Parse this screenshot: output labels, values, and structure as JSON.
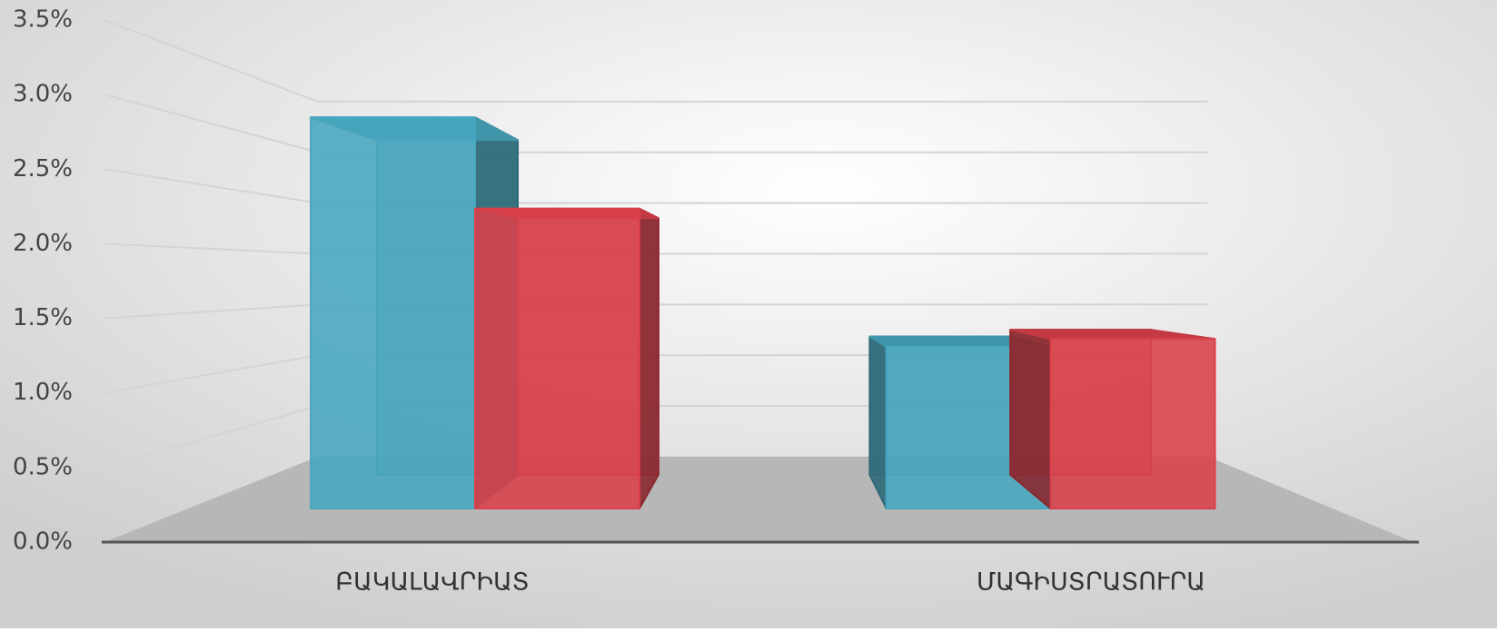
{
  "chart_data": {
    "type": "bar3d",
    "categories": [
      "ԲԱԿԱԼԱՎՐԻԱՏ",
      "ՄԱԳԻՍՏՐԱՏՈՒՐԱ"
    ],
    "series": [
      {
        "color": "#4bafc9",
        "values": [
          3.0,
          1.24
        ]
      },
      {
        "color": "#e5444f",
        "values": [
          2.3,
          1.3
        ]
      }
    ],
    "ylim": [
      0,
      3.5
    ],
    "yticks": [
      {
        "value": 0,
        "label": "0.0%"
      },
      {
        "value": 0.5,
        "label": "0.5%"
      },
      {
        "value": 1,
        "label": "1.0%"
      },
      {
        "value": 1.5,
        "label": "1.5%"
      },
      {
        "value": 2,
        "label": "2.0%"
      },
      {
        "value": 2.5,
        "label": "2.5%"
      },
      {
        "value": 3,
        "label": "3.0%"
      },
      {
        "value": 3.5,
        "label": "3.5%"
      }
    ],
    "grid": true
  }
}
